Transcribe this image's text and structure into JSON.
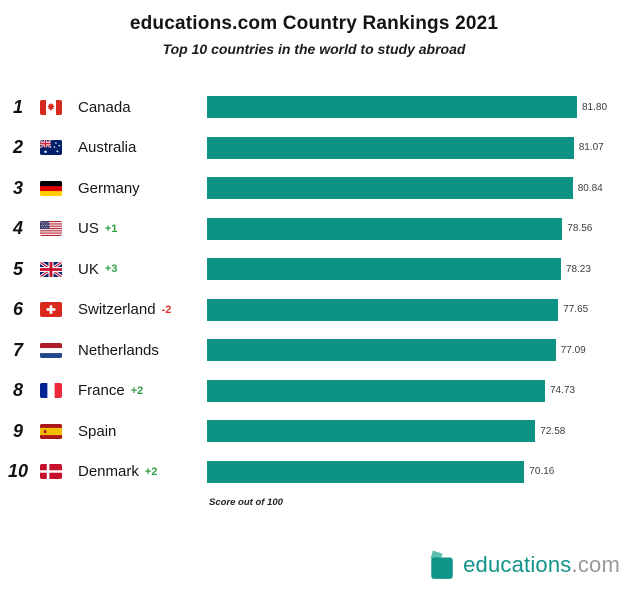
{
  "chart_data": {
    "type": "bar",
    "orientation": "horizontal",
    "title": "educations.com Country Rankings 2021",
    "subtitle": "Top 10 countries in the world to study abroad",
    "footnote": "Score out of 100",
    "value_range": [
      0,
      100
    ],
    "max_bar_value": 81.8,
    "bar_color": "#0d9284",
    "legend": "none",
    "rows": [
      {
        "rank": "1",
        "country": "Canada",
        "flag": "canada",
        "change": "",
        "change_dir": "",
        "value": 81.8,
        "value_label": "81.80"
      },
      {
        "rank": "2",
        "country": "Australia",
        "flag": "australia",
        "change": "",
        "change_dir": "",
        "value": 81.07,
        "value_label": "81.07"
      },
      {
        "rank": "3",
        "country": "Germany",
        "flag": "germany",
        "change": "",
        "change_dir": "",
        "value": 80.84,
        "value_label": "80.84"
      },
      {
        "rank": "4",
        "country": "US",
        "flag": "us",
        "change": "+1",
        "change_dir": "up",
        "value": 78.56,
        "value_label": "78.56"
      },
      {
        "rank": "5",
        "country": "UK",
        "flag": "uk",
        "change": "+3",
        "change_dir": "up",
        "value": 78.23,
        "value_label": "78.23"
      },
      {
        "rank": "6",
        "country": "Switzerland",
        "flag": "switzerland",
        "change": "-2",
        "change_dir": "down",
        "value": 77.65,
        "value_label": "77.65"
      },
      {
        "rank": "7",
        "country": "Netherlands",
        "flag": "netherlands",
        "change": "",
        "change_dir": "",
        "value": 77.09,
        "value_label": "77.09"
      },
      {
        "rank": "8",
        "country": "France",
        "flag": "france",
        "change": "+2",
        "change_dir": "up",
        "value": 74.73,
        "value_label": "74.73"
      },
      {
        "rank": "9",
        "country": "Spain",
        "flag": "spain",
        "change": "",
        "change_dir": "",
        "value": 72.58,
        "value_label": "72.58"
      },
      {
        "rank": "10",
        "country": "Denmark",
        "flag": "denmark",
        "change": "+2",
        "change_dir": "up",
        "value": 70.16,
        "value_label": "70.16"
      }
    ]
  },
  "footer_logo": {
    "text_primary": "educations",
    "text_secondary": ".com"
  },
  "colors": {
    "bar_teal": "#0d9284",
    "rank_up_green": "#2f9e44",
    "rank_down_red": "#e03131",
    "brand_teal": "#10948a",
    "logo_gray": "#9a9a9a",
    "background": "#ffffff"
  }
}
